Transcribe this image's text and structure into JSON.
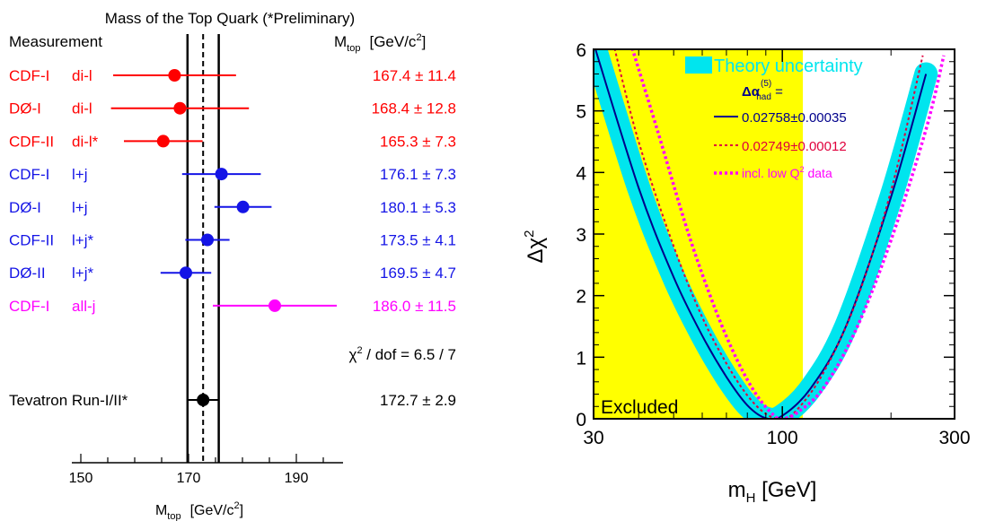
{
  "chart_data": [
    {
      "type": "scatter",
      "title": "Mass of the Top Quark (*Preliminary)",
      "column_headers": {
        "measurement": "Measurement",
        "value_main": "M",
        "value_sub": "top",
        "value_unit": "[GeV/c",
        "value_unit_sup": "2",
        "value_unit_end": "]"
      },
      "xlabel": {
        "main": "M",
        "sub": "top",
        "unit": "[GeV/c",
        "sup": "2",
        "end": "]"
      },
      "xlim": [
        150,
        195
      ],
      "xticks": [
        "150",
        "170",
        "190"
      ],
      "band": {
        "center": 172.7,
        "low": 169.8,
        "high": 175.6
      },
      "chi2_label": {
        "main": "χ",
        "sup": "2",
        "rest": " / dof  =  6.5 / 7"
      },
      "colors": {
        "red": "#ff0000",
        "blue": "#1414e6",
        "magenta": "#ff00ff",
        "black": "#000000"
      },
      "measurements": [
        {
          "experiment": "CDF-I",
          "channel": "di-l",
          "label": "167.4 ± 11.4",
          "value": 167.4,
          "low": 156.0,
          "high": 178.8,
          "color": "red"
        },
        {
          "experiment": "DØ-I",
          "channel": "di-l",
          "label": "168.4 ± 12.8",
          "value": 168.4,
          "low": 155.6,
          "high": 181.2,
          "color": "red"
        },
        {
          "experiment": "CDF-II",
          "channel": "di-l*",
          "label": "165.3 ±  7.3",
          "value": 165.3,
          "low": 158.0,
          "high": 172.6,
          "color": "red"
        },
        {
          "experiment": "CDF-I",
          "channel": "l+j",
          "label": "176.1 ±  7.3",
          "value": 176.1,
          "low": 168.8,
          "high": 183.4,
          "color": "blue"
        },
        {
          "experiment": "DØ-I",
          "channel": "l+j",
          "label": "180.1 ±  5.3",
          "value": 180.1,
          "low": 174.8,
          "high": 185.4,
          "color": "blue"
        },
        {
          "experiment": "CDF-II",
          "channel": "l+j*",
          "label": "173.5 ±  4.1",
          "value": 173.5,
          "low": 169.4,
          "high": 177.6,
          "color": "blue"
        },
        {
          "experiment": "DØ-II",
          "channel": "l+j*",
          "label": "169.5 ±  4.7",
          "value": 169.5,
          "low": 164.8,
          "high": 174.2,
          "color": "blue"
        },
        {
          "experiment": "CDF-I",
          "channel": "all-j",
          "label": "186.0 ± 11.5",
          "value": 186.0,
          "low": 174.5,
          "high": 197.5,
          "color": "magenta"
        }
      ],
      "combined": {
        "experiment": "Tevatron Run-I/II*",
        "label": "172.7 ±  2.9",
        "value": 172.7,
        "low": 169.8,
        "high": 175.6,
        "color": "black"
      }
    },
    {
      "type": "line",
      "title": "",
      "xlabel": {
        "main": "m",
        "sub": "H",
        "rest": " [GeV]"
      },
      "ylabel": {
        "main": "Δχ",
        "sup": "2"
      },
      "x_scale": "log",
      "xlim": [
        30,
        300
      ],
      "ylim": [
        0,
        6
      ],
      "xticks": [
        {
          "value": 30,
          "label": "30"
        },
        {
          "value": 100,
          "label": "100"
        },
        {
          "value": 300,
          "label": "300"
        }
      ],
      "yticks": [
        "0",
        "1",
        "2",
        "3",
        "4",
        "5",
        "6"
      ],
      "excluded_region": {
        "x_max": 114,
        "label": "Excluded",
        "color": "#ffff00"
      },
      "legend": {
        "placement": "top-right",
        "theory": "Theory uncertainty",
        "alpha_title": {
          "main": "Δα",
          "sub": "had",
          "sup": "(5)",
          "rest": " ="
        },
        "entries": [
          {
            "label": "0.02758±0.00035",
            "color": "#00008b",
            "style": "solid"
          },
          {
            "label": "0.02749±0.00012",
            "color": "#e0003c",
            "style": "dotted"
          },
          {
            "label": "incl. low Q",
            "sup": "2",
            "rest": " data",
            "color": "#ff00ff",
            "style": "dotted-thick"
          }
        ]
      },
      "band_color": "#00e5ee",
      "series": [
        {
          "name": "0.02758±0.00035",
          "x": [
            30,
            40,
            50,
            60,
            70,
            80,
            90,
            100,
            120,
            150,
            200,
            250
          ],
          "y": [
            6.1,
            3.75,
            2.3,
            1.35,
            0.68,
            0.22,
            0.01,
            0.05,
            0.5,
            1.5,
            3.6,
            5.6
          ]
        },
        {
          "name": "0.02749±0.00012",
          "x": [
            34,
            40,
            50,
            60,
            70,
            80,
            90,
            100,
            110,
            130,
            160,
            200,
            245
          ],
          "y": [
            6.1,
            4.5,
            2.8,
            1.65,
            0.9,
            0.38,
            0.08,
            0.0,
            0.15,
            0.75,
            1.9,
            3.7,
            5.9
          ]
        },
        {
          "name": "incl. low Q2 data",
          "x": [
            38,
            45,
            55,
            65,
            75,
            85,
            95,
            100,
            110,
            130,
            160,
            200,
            250,
            280
          ],
          "y": [
            6.1,
            4.7,
            3.0,
            1.8,
            0.95,
            0.38,
            0.05,
            0.0,
            0.1,
            0.5,
            1.45,
            2.9,
            4.7,
            5.9
          ]
        }
      ]
    }
  ]
}
